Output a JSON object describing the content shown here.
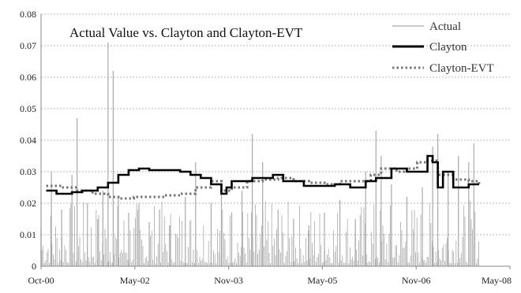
{
  "chart_data": {
    "type": "line",
    "title": "Actual Value vs. Clayton and Clayton-EVT",
    "xlabel": "",
    "ylabel": "",
    "x_ticks": [
      "Oct-00",
      "May-02",
      "Nov-03",
      "May-05",
      "Nov-06",
      "May-08"
    ],
    "x_range": [
      "2000-10",
      "2008-05"
    ],
    "ylim": [
      0,
      0.08
    ],
    "y_ticks": [
      "0",
      "0.01",
      "0.02",
      "0.03",
      "0.04",
      "0.05",
      "0.06",
      "0.07",
      "0.08"
    ],
    "grid": "horizontal dashed",
    "legend": "top-right",
    "series": [
      {
        "name": "Actual",
        "style": "thin gray spikes",
        "color": "#a9a9a9",
        "peaks": [
          {
            "x": "2000-10",
            "y": 0.012
          },
          {
            "x": "2000-12",
            "y": 0.03
          },
          {
            "x": "2001-02",
            "y": 0.018
          },
          {
            "x": "2001-04",
            "y": 0.029
          },
          {
            "x": "2001-05",
            "y": 0.047
          },
          {
            "x": "2001-07",
            "y": 0.02
          },
          {
            "x": "2001-09",
            "y": 0.015
          },
          {
            "x": "2001-10",
            "y": 0.024
          },
          {
            "x": "2001-11",
            "y": 0.071
          },
          {
            "x": "2001-12",
            "y": 0.062
          },
          {
            "x": "2002-01",
            "y": 0.022
          },
          {
            "x": "2002-03",
            "y": 0.017
          },
          {
            "x": "2002-05",
            "y": 0.02
          },
          {
            "x": "2002-07",
            "y": 0.014
          },
          {
            "x": "2002-09",
            "y": 0.018
          },
          {
            "x": "2002-11",
            "y": 0.013
          },
          {
            "x": "2003-02",
            "y": 0.022
          },
          {
            "x": "2003-04",
            "y": 0.033
          },
          {
            "x": "2003-07",
            "y": 0.02
          },
          {
            "x": "2003-09",
            "y": 0.024
          },
          {
            "x": "2003-11",
            "y": 0.017
          },
          {
            "x": "2004-01",
            "y": 0.024
          },
          {
            "x": "2004-03",
            "y": 0.042
          },
          {
            "x": "2004-05",
            "y": 0.033
          },
          {
            "x": "2004-08",
            "y": 0.018
          },
          {
            "x": "2004-11",
            "y": 0.015
          },
          {
            "x": "2005-02",
            "y": 0.013
          },
          {
            "x": "2005-05",
            "y": 0.017
          },
          {
            "x": "2005-08",
            "y": 0.021
          },
          {
            "x": "2005-11",
            "y": 0.015
          },
          {
            "x": "2006-01",
            "y": 0.03
          },
          {
            "x": "2006-03",
            "y": 0.043
          },
          {
            "x": "2006-04",
            "y": 0.035
          },
          {
            "x": "2006-06",
            "y": 0.026
          },
          {
            "x": "2006-09",
            "y": 0.022
          },
          {
            "x": "2006-12",
            "y": 0.025
          },
          {
            "x": "2007-02",
            "y": 0.038
          },
          {
            "x": "2007-03",
            "y": 0.042
          },
          {
            "x": "2007-05",
            "y": 0.03
          },
          {
            "x": "2007-07",
            "y": 0.035
          },
          {
            "x": "2007-09",
            "y": 0.033
          },
          {
            "x": "2007-10",
            "y": 0.039
          }
        ]
      },
      {
        "name": "Clayton",
        "style": "thick black step line",
        "color": "#000000",
        "points": [
          {
            "x": "2000-11",
            "y": 0.024
          },
          {
            "x": "2001-01",
            "y": 0.023
          },
          {
            "x": "2001-04",
            "y": 0.0235
          },
          {
            "x": "2001-06",
            "y": 0.024
          },
          {
            "x": "2001-09",
            "y": 0.025
          },
          {
            "x": "2001-11",
            "y": 0.0265
          },
          {
            "x": "2002-01",
            "y": 0.029
          },
          {
            "x": "2002-03",
            "y": 0.0305
          },
          {
            "x": "2002-05",
            "y": 0.031
          },
          {
            "x": "2002-07",
            "y": 0.0305
          },
          {
            "x": "2003-01",
            "y": 0.03
          },
          {
            "x": "2003-03",
            "y": 0.029
          },
          {
            "x": "2003-05",
            "y": 0.028
          },
          {
            "x": "2003-07",
            "y": 0.026
          },
          {
            "x": "2003-09",
            "y": 0.023
          },
          {
            "x": "2003-10",
            "y": 0.025
          },
          {
            "x": "2003-11",
            "y": 0.027
          },
          {
            "x": "2004-03",
            "y": 0.028
          },
          {
            "x": "2004-07",
            "y": 0.029
          },
          {
            "x": "2004-09",
            "y": 0.027
          },
          {
            "x": "2005-01",
            "y": 0.0255
          },
          {
            "x": "2005-07",
            "y": 0.026
          },
          {
            "x": "2005-10",
            "y": 0.025
          },
          {
            "x": "2006-01",
            "y": 0.027
          },
          {
            "x": "2006-03",
            "y": 0.028
          },
          {
            "x": "2006-06",
            "y": 0.031
          },
          {
            "x": "2006-09",
            "y": 0.03
          },
          {
            "x": "2006-12",
            "y": 0.03
          },
          {
            "x": "2007-01",
            "y": 0.035
          },
          {
            "x": "2007-02",
            "y": 0.033
          },
          {
            "x": "2007-03",
            "y": 0.025
          },
          {
            "x": "2007-04",
            "y": 0.03
          },
          {
            "x": "2007-06",
            "y": 0.025
          },
          {
            "x": "2007-09",
            "y": 0.026
          },
          {
            "x": "2007-11",
            "y": 0.026
          }
        ]
      },
      {
        "name": "Clayton-EVT",
        "style": "gray dotted line",
        "color": "#777777",
        "points": [
          {
            "x": "2000-11",
            "y": 0.0255
          },
          {
            "x": "2001-02",
            "y": 0.025
          },
          {
            "x": "2001-05",
            "y": 0.024
          },
          {
            "x": "2001-08",
            "y": 0.023
          },
          {
            "x": "2001-11",
            "y": 0.022
          },
          {
            "x": "2002-01",
            "y": 0.0215
          },
          {
            "x": "2002-04",
            "y": 0.022
          },
          {
            "x": "2002-07",
            "y": 0.022
          },
          {
            "x": "2002-10",
            "y": 0.0225
          },
          {
            "x": "2003-01",
            "y": 0.023
          },
          {
            "x": "2003-04",
            "y": 0.025
          },
          {
            "x": "2003-07",
            "y": 0.027
          },
          {
            "x": "2003-09",
            "y": 0.024
          },
          {
            "x": "2003-11",
            "y": 0.025
          },
          {
            "x": "2004-02",
            "y": 0.027
          },
          {
            "x": "2004-05",
            "y": 0.0275
          },
          {
            "x": "2004-08",
            "y": 0.028
          },
          {
            "x": "2004-11",
            "y": 0.027
          },
          {
            "x": "2005-02",
            "y": 0.0265
          },
          {
            "x": "2005-05",
            "y": 0.026
          },
          {
            "x": "2005-08",
            "y": 0.027
          },
          {
            "x": "2005-11",
            "y": 0.027
          },
          {
            "x": "2006-02",
            "y": 0.029
          },
          {
            "x": "2006-04",
            "y": 0.031
          },
          {
            "x": "2006-07",
            "y": 0.03
          },
          {
            "x": "2006-09",
            "y": 0.031
          },
          {
            "x": "2006-11",
            "y": 0.033
          },
          {
            "x": "2007-01",
            "y": 0.0335
          },
          {
            "x": "2007-03",
            "y": 0.029
          },
          {
            "x": "2007-06",
            "y": 0.0275
          },
          {
            "x": "2007-09",
            "y": 0.027
          },
          {
            "x": "2007-11",
            "y": 0.026
          }
        ]
      }
    ]
  }
}
